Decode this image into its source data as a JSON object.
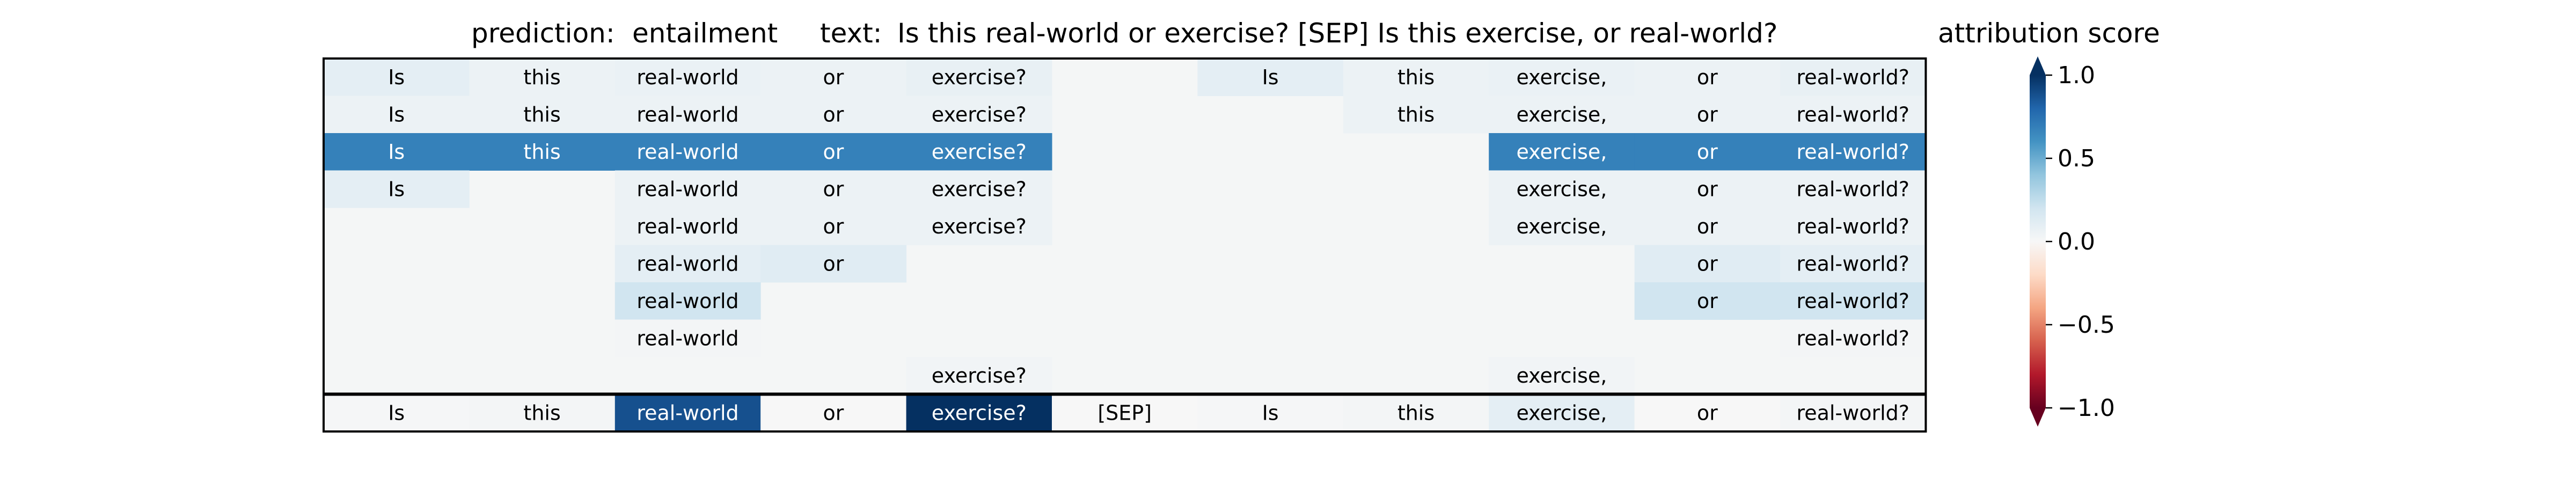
{
  "header": {
    "prediction_label": "prediction:",
    "prediction_value": "entailment",
    "text_label": "text:",
    "text_value": "Is this real-world or exercise? [SEP] Is this exercise, or real-world?",
    "colorbar_title": "attribution score"
  },
  "colorbar": {
    "ticks": [
      {
        "value": 1.0,
        "label": "1.0"
      },
      {
        "value": 0.5,
        "label": "0.5"
      },
      {
        "value": 0.0,
        "label": "0.0"
      },
      {
        "value": -0.5,
        "label": "−0.5"
      },
      {
        "value": -1.0,
        "label": "−1.0"
      }
    ],
    "range": [
      -1.0,
      1.0
    ],
    "colormap": "RdBu",
    "extend": "both"
  },
  "chart_data": {
    "type": "heatmap",
    "tokens": [
      "Is",
      "this",
      "real-world",
      "or",
      "exercise?",
      "[SEP]",
      "Is",
      "this",
      "exercise,",
      "or",
      "real-world?"
    ],
    "rows": [
      {
        "shown": [
          1,
          1,
          1,
          1,
          1,
          0,
          1,
          1,
          1,
          1,
          1
        ],
        "values": [
          0.1,
          0.06,
          0.07,
          0.06,
          0.08,
          0.0,
          0.1,
          0.06,
          0.07,
          0.06,
          0.08
        ]
      },
      {
        "shown": [
          1,
          1,
          1,
          1,
          1,
          0,
          0,
          1,
          1,
          1,
          1
        ],
        "values": [
          0.06,
          0.06,
          0.06,
          0.06,
          0.06,
          0.0,
          0.0,
          0.06,
          0.06,
          0.06,
          0.06
        ]
      },
      {
        "shown": [
          1,
          1,
          1,
          1,
          1,
          0,
          0,
          0,
          1,
          1,
          1
        ],
        "values": [
          0.68,
          0.68,
          0.68,
          0.68,
          0.68,
          0.0,
          0.0,
          0.0,
          0.68,
          0.68,
          0.68
        ]
      },
      {
        "shown": [
          1,
          0,
          1,
          1,
          1,
          0,
          0,
          0,
          1,
          1,
          1
        ],
        "values": [
          0.1,
          0.0,
          0.06,
          0.06,
          0.06,
          0.0,
          0.0,
          0.0,
          0.06,
          0.06,
          0.06
        ]
      },
      {
        "shown": [
          0,
          0,
          1,
          1,
          1,
          0,
          0,
          0,
          1,
          1,
          1
        ],
        "values": [
          0.0,
          0.0,
          0.06,
          0.06,
          0.06,
          0.0,
          0.0,
          0.0,
          0.06,
          0.06,
          0.06
        ]
      },
      {
        "shown": [
          0,
          0,
          1,
          1,
          0,
          0,
          0,
          0,
          0,
          1,
          1
        ],
        "values": [
          0.0,
          0.0,
          0.1,
          0.12,
          0.0,
          0.0,
          0.0,
          0.0,
          0.0,
          0.12,
          0.1
        ]
      },
      {
        "shown": [
          0,
          0,
          1,
          0,
          0,
          0,
          0,
          0,
          0,
          1,
          1
        ],
        "values": [
          0.0,
          0.0,
          0.2,
          0.0,
          0.0,
          0.0,
          0.0,
          0.0,
          0.0,
          0.2,
          0.2
        ]
      },
      {
        "shown": [
          0,
          0,
          1,
          0,
          0,
          0,
          0,
          0,
          0,
          0,
          1
        ],
        "values": [
          0.0,
          0.0,
          0.02,
          0.0,
          0.0,
          0.0,
          0.0,
          0.0,
          0.0,
          0.0,
          0.02
        ]
      },
      {
        "shown": [
          0,
          0,
          0,
          0,
          1,
          0,
          0,
          0,
          1,
          0,
          0
        ],
        "values": [
          0.0,
          0.0,
          0.0,
          0.0,
          0.03,
          0.0,
          0.0,
          0.0,
          0.03,
          0.0,
          0.0
        ]
      }
    ],
    "summary_row": {
      "shown": [
        1,
        1,
        1,
        1,
        1,
        1,
        1,
        1,
        1,
        1,
        1
      ],
      "values": [
        0.01,
        0.02,
        0.88,
        0.0,
        1.0,
        0.0,
        0.01,
        0.02,
        0.1,
        0.0,
        0.02
      ]
    }
  }
}
